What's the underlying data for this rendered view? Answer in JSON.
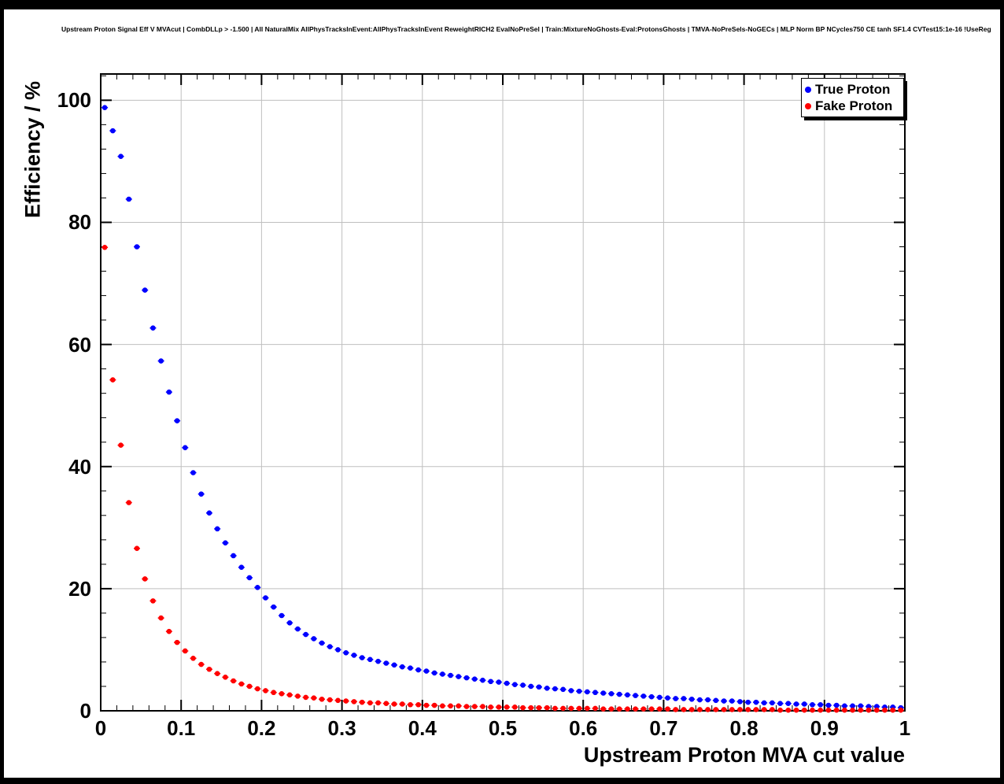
{
  "page": {
    "title": "Upstream Proton Signal Eff V MVAcut | CombDLLp > -1.500 | All NaturalMix AllPhysTracksInEvent:AllPhysTracksInEvent ReweightRICH2 EvalNoPreSel | Train:MixtureNoGhosts-Eval:ProtonsGhosts | TMVA-NoPreSels-NoGECs | MLP Norm BP NCycles750 CE tanh SF1.4 CVTest15:1e-16 !UseReg"
  },
  "colors": {
    "true_proton": "#0000ff",
    "fake_proton": "#ff0000",
    "grid": "#bfbfbf",
    "frame": "#000000",
    "background": "#ffffff"
  },
  "chart_data": {
    "type": "scatter",
    "title": "Upstream Proton Signal Eff V MVAcut",
    "xlabel": "Upstream Proton MVA cut value",
    "ylabel": "Efficiency / %",
    "xlim": [
      0,
      1
    ],
    "ylim": [
      0,
      104.3
    ],
    "grid": true,
    "marker": "filled-circle",
    "bin_width": 0.01,
    "x_ticks": {
      "values": [
        0,
        0.1,
        0.2,
        0.3,
        0.4,
        0.5,
        0.6,
        0.7,
        0.8,
        0.9,
        1
      ],
      "labels": [
        "0",
        "0.1",
        "0.2",
        "0.3",
        "0.4",
        "0.5",
        "0.6",
        "0.7",
        "0.8",
        "0.9",
        "1"
      ]
    },
    "y_ticks": {
      "values": [
        0,
        20,
        40,
        60,
        80,
        100
      ],
      "labels": [
        "0",
        "20",
        "40",
        "60",
        "80",
        "100"
      ]
    },
    "legend": {
      "position": "top-right",
      "entries": [
        {
          "label": "True Proton",
          "color": "#0000ff"
        },
        {
          "label": "Fake Proton",
          "color": "#ff0000"
        }
      ]
    },
    "x": [
      0.005,
      0.015,
      0.025,
      0.035,
      0.045,
      0.055,
      0.065,
      0.075,
      0.085,
      0.095,
      0.105,
      0.115,
      0.125,
      0.135,
      0.145,
      0.155,
      0.165,
      0.175,
      0.185,
      0.195,
      0.205,
      0.215,
      0.225,
      0.235,
      0.245,
      0.255,
      0.265,
      0.275,
      0.285,
      0.295,
      0.305,
      0.315,
      0.325,
      0.335,
      0.345,
      0.355,
      0.365,
      0.375,
      0.385,
      0.395,
      0.405,
      0.415,
      0.425,
      0.435,
      0.445,
      0.455,
      0.465,
      0.475,
      0.485,
      0.495,
      0.505,
      0.515,
      0.525,
      0.535,
      0.545,
      0.555,
      0.565,
      0.575,
      0.585,
      0.595,
      0.605,
      0.615,
      0.625,
      0.635,
      0.645,
      0.655,
      0.665,
      0.675,
      0.685,
      0.695,
      0.705,
      0.715,
      0.725,
      0.735,
      0.745,
      0.755,
      0.765,
      0.775,
      0.785,
      0.795,
      0.805,
      0.815,
      0.825,
      0.835,
      0.845,
      0.855,
      0.865,
      0.875,
      0.885,
      0.895,
      0.905,
      0.915,
      0.925,
      0.935,
      0.945,
      0.955,
      0.965,
      0.975,
      0.985,
      0.995
    ],
    "series": [
      {
        "name": "True Proton",
        "color": "#0000ff",
        "values": [
          98.8,
          95.0,
          90.8,
          83.8,
          76.0,
          68.9,
          62.7,
          57.3,
          52.2,
          47.5,
          43.1,
          39.0,
          35.5,
          32.4,
          29.8,
          27.5,
          25.4,
          23.5,
          21.8,
          20.2,
          18.5,
          17.0,
          15.6,
          14.4,
          13.4,
          12.5,
          11.8,
          11.1,
          10.5,
          10.0,
          9.5,
          9.1,
          8.7,
          8.4,
          8.1,
          7.8,
          7.5,
          7.2,
          7.0,
          6.7,
          6.5,
          6.2,
          6.0,
          5.8,
          5.6,
          5.4,
          5.2,
          5.0,
          4.8,
          4.7,
          4.5,
          4.3,
          4.2,
          4.0,
          3.9,
          3.7,
          3.6,
          3.5,
          3.3,
          3.2,
          3.1,
          3.0,
          2.9,
          2.8,
          2.7,
          2.6,
          2.5,
          2.4,
          2.3,
          2.2,
          2.1,
          2.0,
          2.0,
          1.9,
          1.8,
          1.8,
          1.7,
          1.6,
          1.6,
          1.5,
          1.4,
          1.4,
          1.3,
          1.3,
          1.2,
          1.2,
          1.1,
          1.1,
          1.0,
          1.0,
          0.9,
          0.9,
          0.8,
          0.8,
          0.8,
          0.7,
          0.7,
          0.6,
          0.6,
          0.5
        ]
      },
      {
        "name": "Fake Proton",
        "color": "#ff0000",
        "values": [
          75.9,
          54.2,
          43.5,
          34.1,
          26.6,
          21.6,
          18.0,
          15.2,
          13.0,
          11.2,
          9.8,
          8.6,
          7.6,
          6.8,
          6.1,
          5.5,
          4.9,
          4.4,
          4.0,
          3.6,
          3.3,
          3.0,
          2.8,
          2.6,
          2.4,
          2.2,
          2.1,
          1.9,
          1.8,
          1.7,
          1.6,
          1.5,
          1.4,
          1.3,
          1.3,
          1.2,
          1.1,
          1.1,
          1.0,
          1.0,
          0.9,
          0.9,
          0.8,
          0.8,
          0.8,
          0.7,
          0.7,
          0.7,
          0.6,
          0.6,
          0.6,
          0.6,
          0.5,
          0.5,
          0.5,
          0.5,
          0.4,
          0.4,
          0.4,
          0.4,
          0.4,
          0.4,
          0.3,
          0.3,
          0.3,
          0.3,
          0.3,
          0.3,
          0.3,
          0.3,
          0.3,
          0.2,
          0.2,
          0.2,
          0.2,
          0.2,
          0.2,
          0.2,
          0.2,
          0.2,
          0.2,
          0.2,
          0.2,
          0.2,
          0.1,
          0.1,
          0.1,
          0.1,
          0.1,
          0.1,
          0.1,
          0.1,
          0.1,
          0.1,
          0.1,
          0.1,
          0.1,
          0.1,
          0.1,
          0.1
        ]
      }
    ]
  }
}
